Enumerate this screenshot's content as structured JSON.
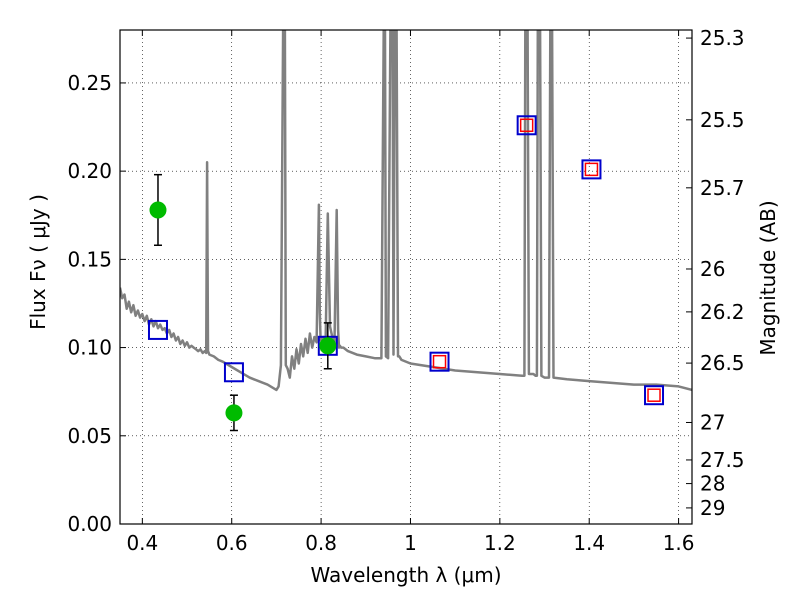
{
  "chart_data": {
    "type": "scatter",
    "title": "",
    "xlabel": "Wavelength  λ (μm)",
    "ylabel": "Flux  Fν  ( μJy )",
    "ylabel_right": "Magnitude (AB)",
    "xlim": [
      0.35,
      1.63
    ],
    "ylim": [
      0.0,
      0.28
    ],
    "grid": true,
    "x_ticks": [
      0.4,
      0.6,
      0.8,
      1.0,
      1.2,
      1.4,
      1.6
    ],
    "x_tick_labels": [
      "0.4",
      "0.6",
      "0.8",
      "1",
      "1.2",
      "1.4",
      "1.6"
    ],
    "y_ticks": [
      0.0,
      0.05,
      0.1,
      0.15,
      0.2,
      0.25
    ],
    "y_tick_labels": [
      "0.00",
      "0.05",
      "0.10",
      "0.15",
      "0.20",
      "0.25"
    ],
    "right_ticks": [
      {
        "label": "25.3",
        "mag": 25.3
      },
      {
        "label": "25.5",
        "mag": 25.5
      },
      {
        "label": "25.7",
        "mag": 25.7
      },
      {
        "label": "26",
        "mag": 26.0
      },
      {
        "label": "26.2",
        "mag": 26.2
      },
      {
        "label": "26.5",
        "mag": 26.5
      },
      {
        "label": "27",
        "mag": 27.0
      },
      {
        "label": "27.5",
        "mag": 27.5
      },
      {
        "label": "28",
        "mag": 28.0
      },
      {
        "label": "29",
        "mag": 29.0
      }
    ],
    "series": [
      {
        "name": "model spectrum",
        "style": "line",
        "color": "#808080",
        "x": [
          0.35,
          0.355,
          0.36,
          0.365,
          0.37,
          0.375,
          0.38,
          0.385,
          0.39,
          0.395,
          0.4,
          0.405,
          0.41,
          0.415,
          0.42,
          0.425,
          0.43,
          0.435,
          0.44,
          0.445,
          0.45,
          0.455,
          0.46,
          0.465,
          0.47,
          0.475,
          0.48,
          0.485,
          0.49,
          0.495,
          0.5,
          0.505,
          0.51,
          0.515,
          0.52,
          0.525,
          0.53,
          0.535,
          0.54,
          0.543,
          0.545,
          0.547,
          0.55,
          0.56,
          0.57,
          0.58,
          0.6,
          0.62,
          0.64,
          0.66,
          0.68,
          0.7,
          0.705,
          0.71,
          0.715,
          0.717,
          0.719,
          0.721,
          0.725,
          0.73,
          0.735,
          0.74,
          0.745,
          0.75,
          0.755,
          0.76,
          0.765,
          0.77,
          0.775,
          0.78,
          0.785,
          0.79,
          0.795,
          0.797,
          0.799,
          0.801,
          0.805,
          0.81,
          0.815,
          0.82,
          0.825,
          0.83,
          0.835,
          0.838,
          0.84,
          0.842,
          0.845,
          0.85,
          0.86,
          0.88,
          0.9,
          0.92,
          0.935,
          0.94,
          0.943,
          0.945,
          0.95,
          0.955,
          0.958,
          0.96,
          0.962,
          0.965,
          0.967,
          0.969,
          0.972,
          0.975,
          0.98,
          1.0,
          1.05,
          1.1,
          1.15,
          1.2,
          1.25,
          1.255,
          1.257,
          1.26,
          1.262,
          1.265,
          1.27,
          1.275,
          1.28,
          1.283,
          1.285,
          1.287,
          1.29,
          1.293,
          1.3,
          1.305,
          1.31,
          1.313,
          1.315,
          1.317,
          1.32,
          1.35,
          1.4,
          1.45,
          1.5,
          1.55,
          1.6,
          1.63
        ],
        "y": [
          0.134,
          0.128,
          0.13,
          0.122,
          0.126,
          0.12,
          0.124,
          0.118,
          0.121,
          0.117,
          0.119,
          0.115,
          0.118,
          0.113,
          0.116,
          0.112,
          0.115,
          0.111,
          0.113,
          0.11,
          0.111,
          0.108,
          0.11,
          0.106,
          0.108,
          0.104,
          0.106,
          0.102,
          0.104,
          0.101,
          0.103,
          0.1,
          0.101,
          0.1,
          0.099,
          0.098,
          0.099,
          0.097,
          0.098,
          0.097,
          0.205,
          0.098,
          0.096,
          0.095,
          0.093,
          0.092,
          0.089,
          0.086,
          0.083,
          0.081,
          0.079,
          0.076,
          0.078,
          0.09,
          0.28,
          0.28,
          0.28,
          0.09,
          0.088,
          0.083,
          0.095,
          0.088,
          0.099,
          0.091,
          0.102,
          0.095,
          0.105,
          0.097,
          0.108,
          0.1,
          0.106,
          0.103,
          0.181,
          0.12,
          0.104,
          0.104,
          0.106,
          0.103,
          0.176,
          0.112,
          0.106,
          0.103,
          0.178,
          0.11,
          0.1,
          0.101,
          0.1,
          0.1,
          0.098,
          0.096,
          0.095,
          0.094,
          0.094,
          0.28,
          0.28,
          0.095,
          0.094,
          0.28,
          0.28,
          0.28,
          0.096,
          0.28,
          0.28,
          0.28,
          0.095,
          0.095,
          0.093,
          0.091,
          0.089,
          0.087,
          0.086,
          0.085,
          0.084,
          0.084,
          0.28,
          0.28,
          0.28,
          0.085,
          0.085,
          0.085,
          0.084,
          0.084,
          0.28,
          0.28,
          0.28,
          0.084,
          0.083,
          0.083,
          0.083,
          0.28,
          0.28,
          0.28,
          0.083,
          0.082,
          0.081,
          0.08,
          0.079,
          0.079,
          0.078,
          0.076
        ]
      },
      {
        "name": "blue squares",
        "style": "open-square",
        "color": "#0000cc",
        "x": [
          0.435,
          0.605,
          0.815,
          1.065,
          1.26,
          1.405,
          1.545
        ],
        "y": [
          0.11,
          0.086,
          0.101,
          0.092,
          0.226,
          0.201,
          0.073
        ]
      },
      {
        "name": "red squares",
        "style": "open-square-small",
        "color": "#ff0000",
        "x": [
          1.065,
          1.26,
          1.405,
          1.545
        ],
        "y": [
          0.092,
          0.226,
          0.201,
          0.073
        ]
      },
      {
        "name": "green points",
        "style": "filled-circle",
        "color": "#00bb00",
        "x": [
          0.435,
          0.605,
          0.815
        ],
        "y": [
          0.178,
          0.063,
          0.101
        ],
        "yerr": [
          0.02,
          0.01,
          0.013
        ]
      }
    ]
  }
}
